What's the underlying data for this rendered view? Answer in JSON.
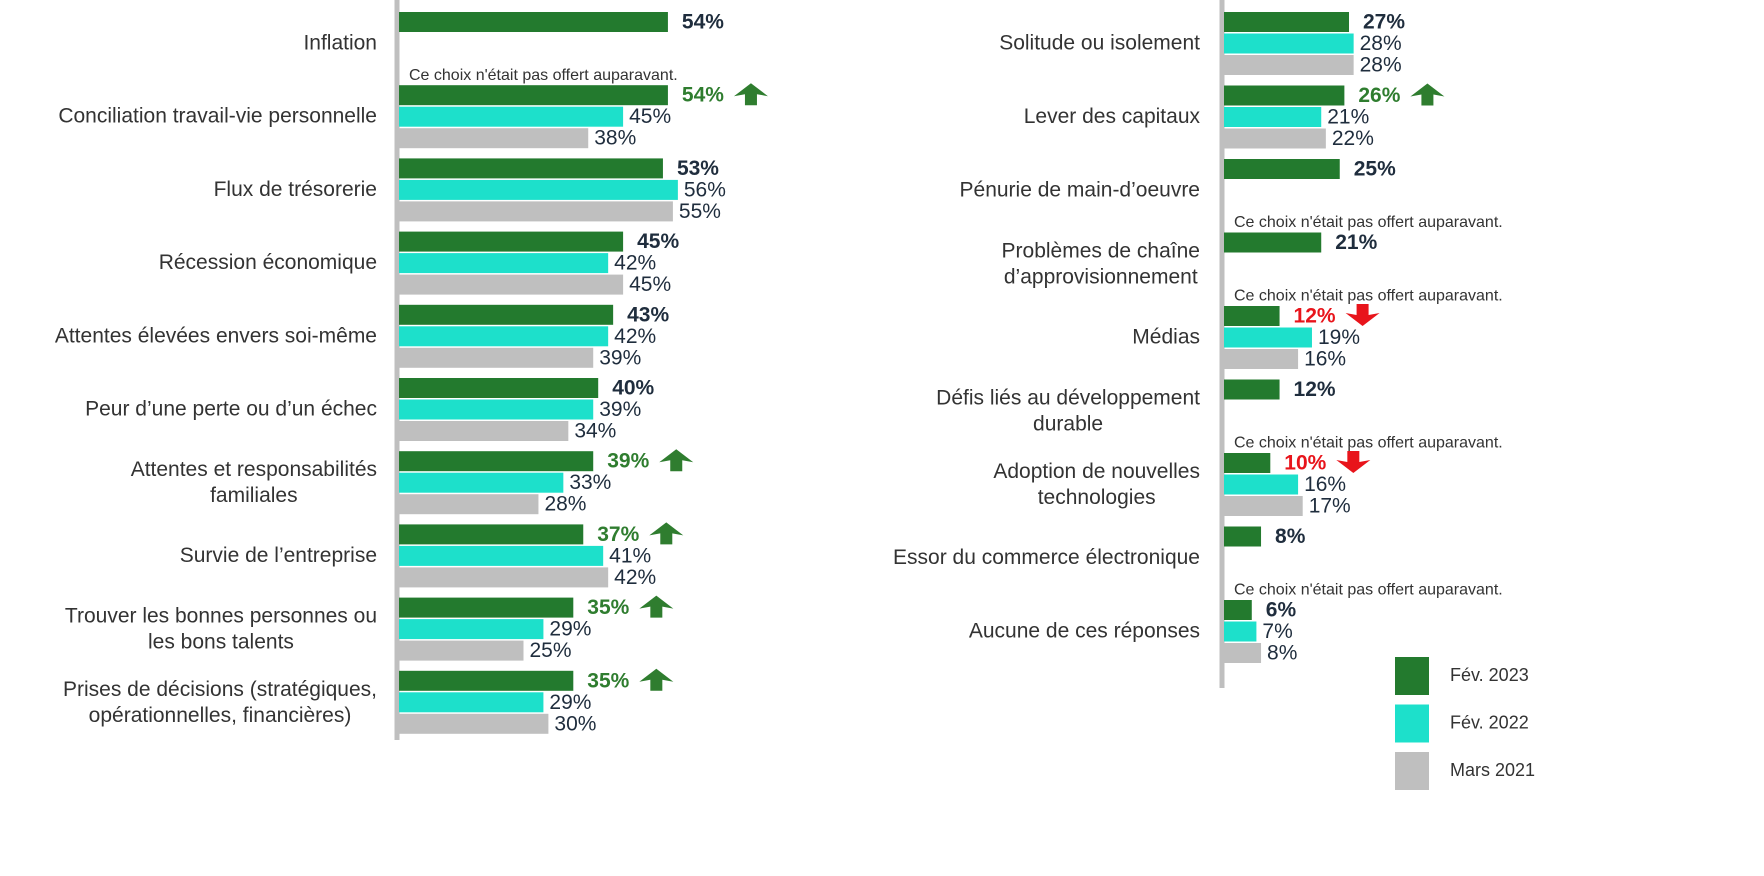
{
  "chart_data": [
    {
      "type": "bar",
      "orientation": "horizontal",
      "categories": [
        "Inflation",
        "Conciliation travail-vie personnelle",
        "Flux de trésorerie",
        "Récession économique",
        "Attentes élevées envers soi-même",
        "Peur d’une perte ou d’un échec",
        "Attentes et responsabilités\nfamiliales",
        "Survie de l’entreprise",
        "Trouver les bonnes personnes ou\nles bons talents",
        "Prises de décisions (stratégiques,\nopérationnelles, financières)"
      ],
      "xlim": [
        0,
        100
      ],
      "series": [
        {
          "color": "#237a2e",
          "values": [
            54,
            54,
            53,
            45,
            43,
            40,
            39,
            37,
            35,
            35
          ],
          "value_labels": [
            "54%",
            "54%",
            "53%",
            "45%",
            "43%",
            "40%",
            "39%",
            "37%",
            "35%",
            "35%"
          ]
        },
        {
          "color": "#1de0cb",
          "values": [
            null,
            45,
            56,
            42,
            42,
            39,
            33,
            41,
            29,
            29
          ],
          "value_labels": [
            null,
            "45%",
            "56%",
            "42%",
            "42%",
            "39%",
            "33%",
            "41%",
            "29%",
            "29%"
          ]
        },
        {
          "color": "#bfbfbf",
          "values": [
            null,
            38,
            55,
            45,
            39,
            34,
            28,
            42,
            25,
            30
          ],
          "value_labels": [
            null,
            "38%",
            "55%",
            "45%",
            "39%",
            "34%",
            "28%",
            "42%",
            "25%",
            "30%"
          ]
        }
      ],
      "notes": [
        "Ce choix n'était pas offert auparavant.",
        null,
        null,
        null,
        null,
        null,
        null,
        null,
        null,
        null
      ],
      "trends": [
        null,
        "up",
        null,
        null,
        null,
        null,
        "up",
        "up",
        "up",
        "up"
      ]
    },
    {
      "type": "bar",
      "orientation": "horizontal",
      "categories": [
        "Solitude ou isolement",
        "Lever des capitaux",
        "Pénurie de main-d’oeuvre",
        "Problèmes de chaîne\nd’approvisionnement",
        "Médias",
        "Défis liés au développement\ndurable",
        "Adoption de nouvelles\ntechnologies",
        "Essor du commerce électronique",
        "Aucune de ces réponses"
      ],
      "xlim": [
        0,
        100
      ],
      "series": [
        {
          "name": "Fév. 2023",
          "color": "#237a2e",
          "values": [
            27,
            26,
            25,
            21,
            12,
            12,
            10,
            8,
            6
          ],
          "value_labels": [
            "27%",
            "26%",
            "25%",
            "21%",
            "12%",
            "12%",
            "10%",
            "8%",
            "6%"
          ]
        },
        {
          "name": "Fév. 2022",
          "color": "#1de0cb",
          "values": [
            28,
            21,
            null,
            null,
            19,
            null,
            16,
            null,
            7
          ],
          "value_labels": [
            "28%",
            "21%",
            null,
            null,
            "19%",
            null,
            "16%",
            null,
            "7%"
          ]
        },
        {
          "name": "Mars 2021",
          "color": "#bfbfbf",
          "values": [
            28,
            22,
            null,
            null,
            16,
            null,
            17,
            null,
            8
          ],
          "value_labels": [
            "28%",
            "22%",
            null,
            null,
            "16%",
            null,
            "17%",
            null,
            "8%"
          ]
        }
      ],
      "notes": [
        null,
        null,
        "Ce choix n'était pas offert auparavant.",
        "Ce choix n'était pas offert auparavant.",
        null,
        "Ce choix n'était pas offert auparavant.",
        null,
        "Ce choix n'était pas offert auparavant.",
        null
      ],
      "trends": [
        null,
        "up",
        null,
        null,
        "down",
        null,
        "down",
        null,
        null
      ],
      "legend": "lower right"
    }
  ],
  "trend_colors": {
    "up": "#2f7d2f",
    "down": "#e8141b"
  },
  "label_color": "#1f2d3d"
}
